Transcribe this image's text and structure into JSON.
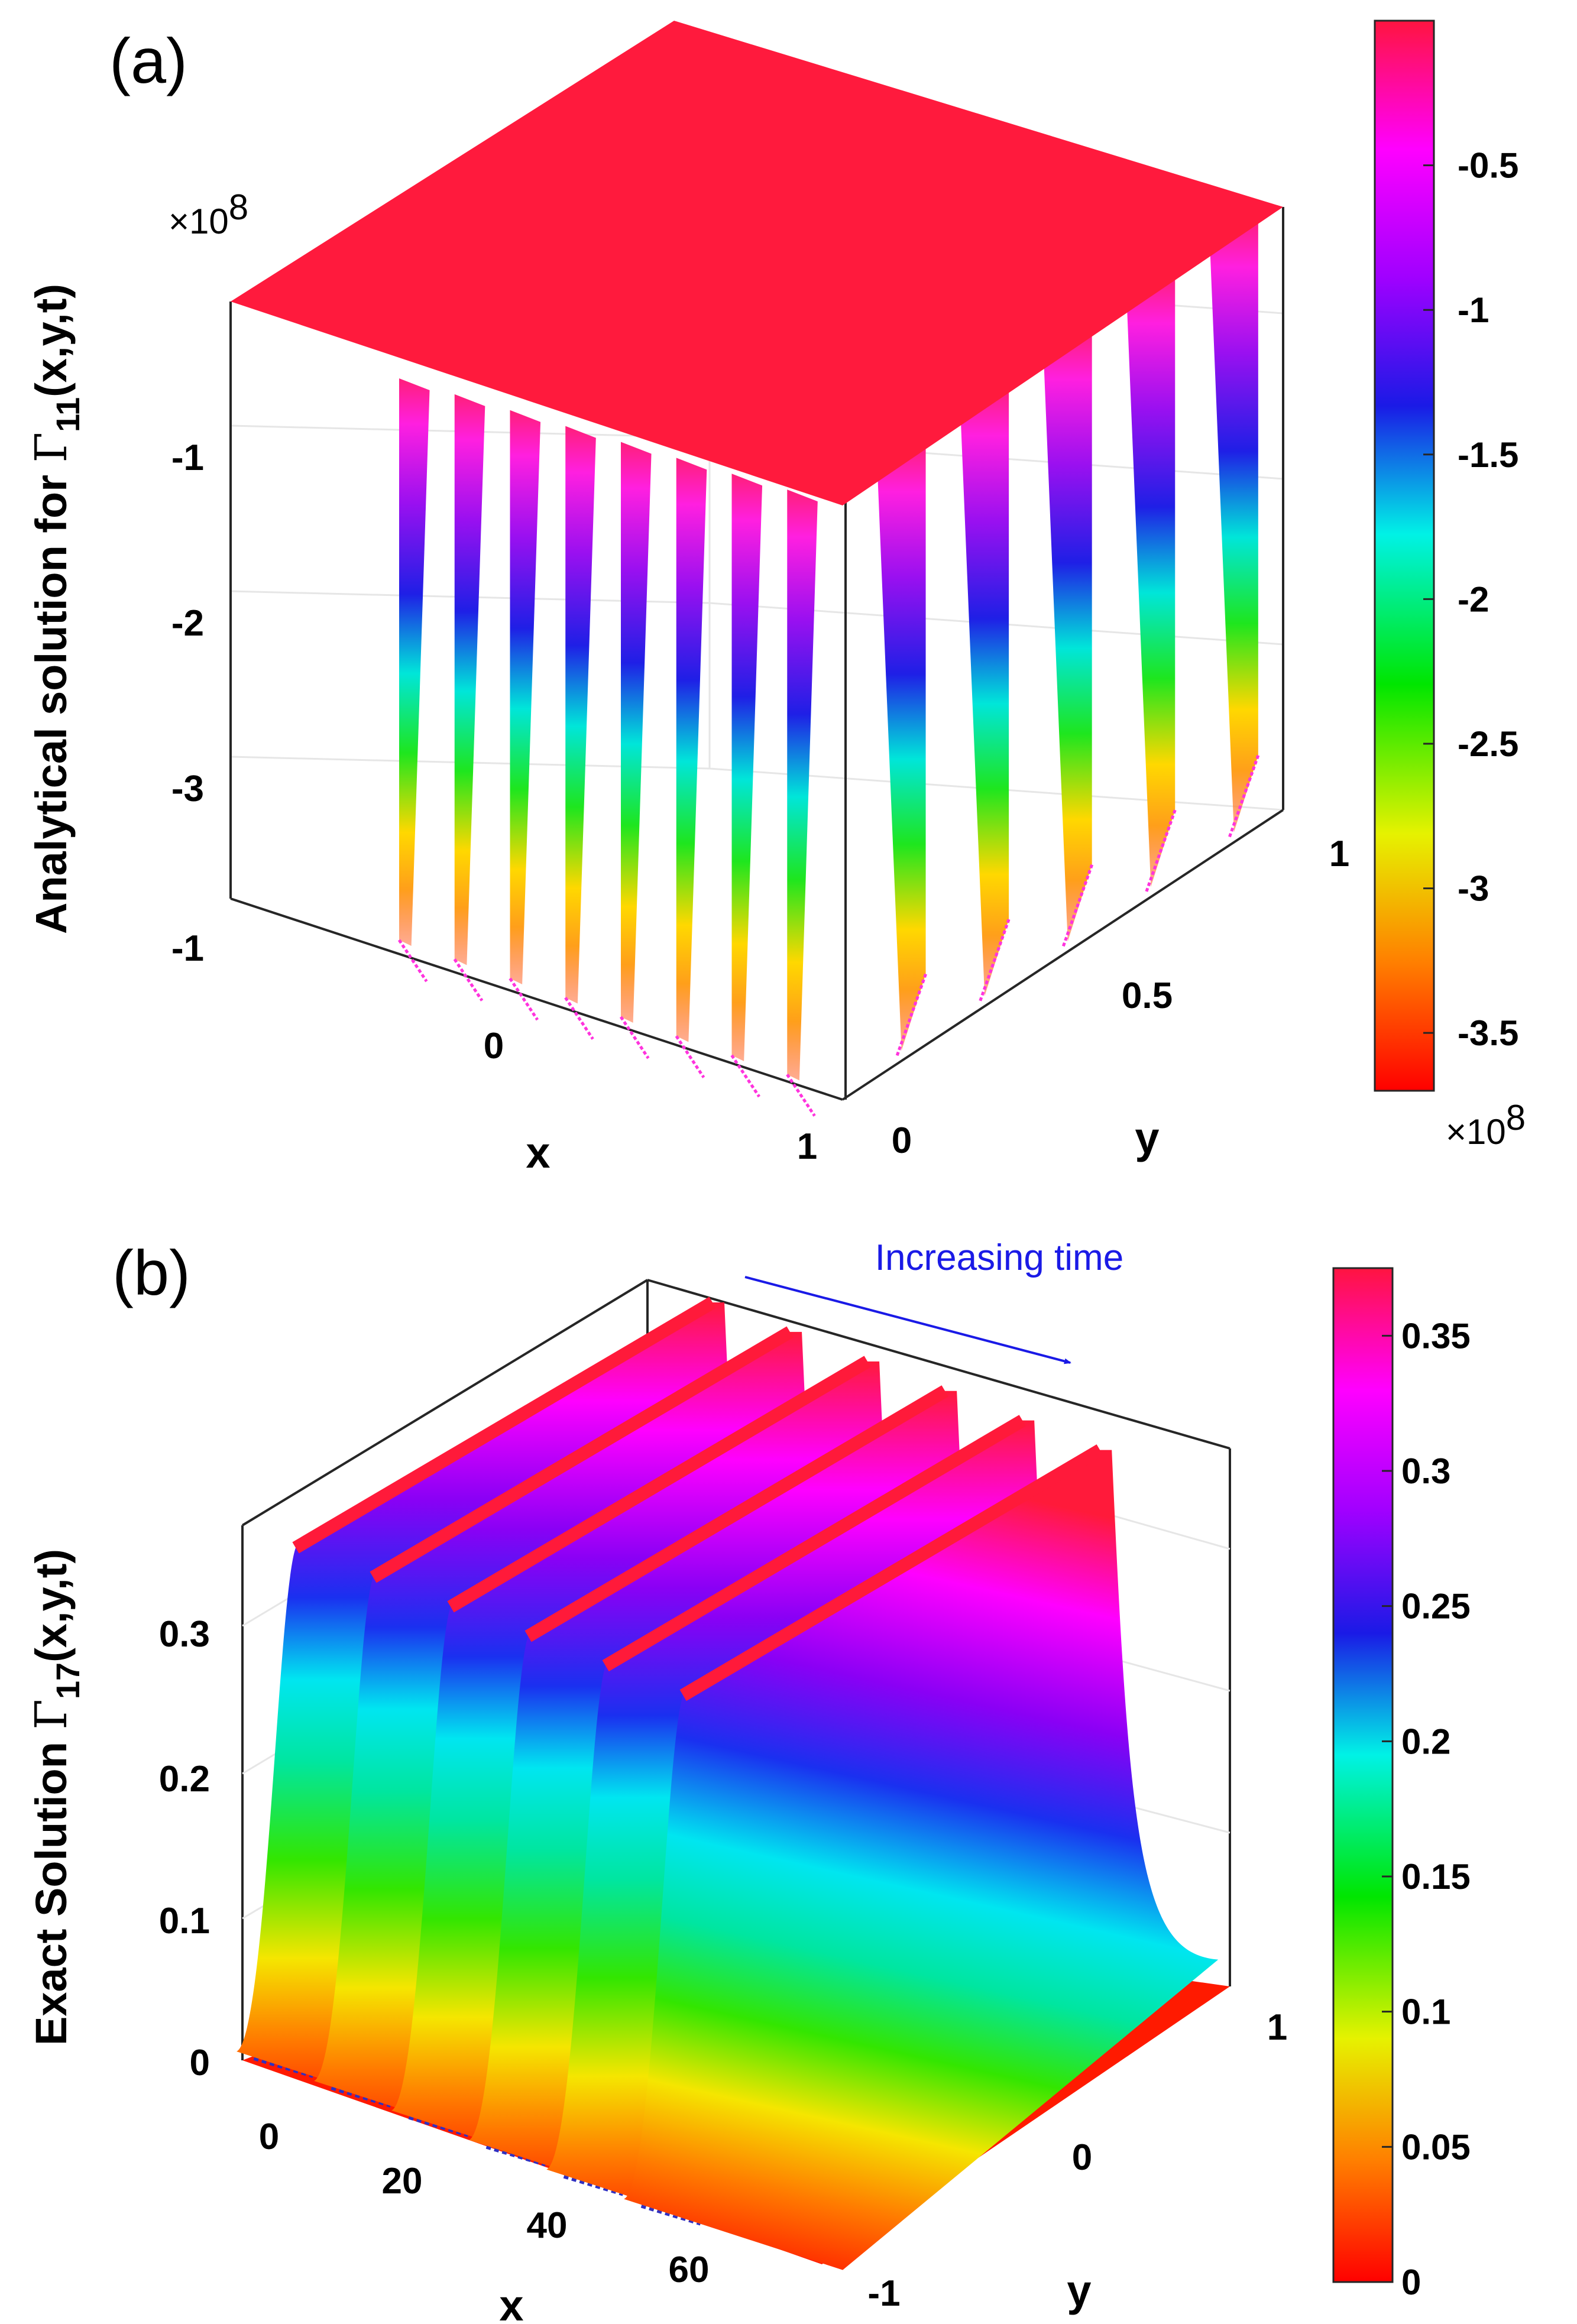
{
  "chart_data": [
    {
      "panel": "(a)",
      "type": "surface3d",
      "zlabel_prefix": "Analytical solution for",
      "zlabel_symbol": "Γ",
      "zlabel_subscript": "11",
      "zlabel_suffix": "(x,y,t)",
      "z_multiplier": "×10",
      "z_multiplier_exp": "8",
      "xlabel": "x",
      "ylabel": "y",
      "x_ticks": [
        "-1",
        "0",
        "1"
      ],
      "y_ticks": [
        "0",
        "0.5",
        "1"
      ],
      "z_ticks": [
        "-1",
        "-2",
        "-3"
      ],
      "z_tick_values": [
        -1,
        -2,
        -3
      ],
      "xlim": [
        -1,
        1
      ],
      "ylim": [
        0,
        1
      ],
      "zlim": [
        -3.7,
        0
      ],
      "surface_plateau_value": 0,
      "num_wave_fronts": 13,
      "colormap": "hsv",
      "colorbar": {
        "ticks": [
          "-0.5",
          "-1",
          "-1.5",
          "-2",
          "-2.5",
          "-3",
          "-3.5"
        ],
        "tick_values": [
          -0.5,
          -1,
          -1.5,
          -2,
          -2.5,
          -3,
          -3.5
        ],
        "range": [
          -3.7,
          0
        ],
        "multiplier": "×10",
        "multiplier_exp": "8"
      }
    },
    {
      "panel": "(b)",
      "type": "surface3d",
      "zlabel_prefix": "Exact Solution",
      "zlabel_symbol": "Γ",
      "zlabel_subscript": "17",
      "zlabel_suffix": "(x,y,t)",
      "xlabel": "x",
      "ylabel": "y",
      "x_ticks": [
        "0",
        "20",
        "40",
        "60"
      ],
      "x_tick_values": [
        0,
        20,
        40,
        60
      ],
      "y_ticks": [
        "-1",
        "0",
        "1"
      ],
      "y_tick_values": [
        -1,
        0,
        1
      ],
      "z_ticks": [
        "0",
        "0.1",
        "0.2",
        "0.3"
      ],
      "z_tick_values": [
        0,
        0.1,
        0.2,
        0.3
      ],
      "xlim": [
        -8,
        68
      ],
      "ylim": [
        -1,
        1
      ],
      "zlim": [
        0,
        0.375
      ],
      "peak_value": 0.36,
      "num_solitons": 6,
      "annotation": "Increasing time",
      "colormap": "hsv",
      "colorbar": {
        "ticks": [
          "0.35",
          "0.3",
          "0.25",
          "0.2",
          "0.15",
          "0.1",
          "0.05",
          "0"
        ],
        "tick_values": [
          0.35,
          0.3,
          0.25,
          0.2,
          0.15,
          0.1,
          0.05,
          0
        ],
        "range": [
          0,
          0.375
        ]
      }
    }
  ]
}
